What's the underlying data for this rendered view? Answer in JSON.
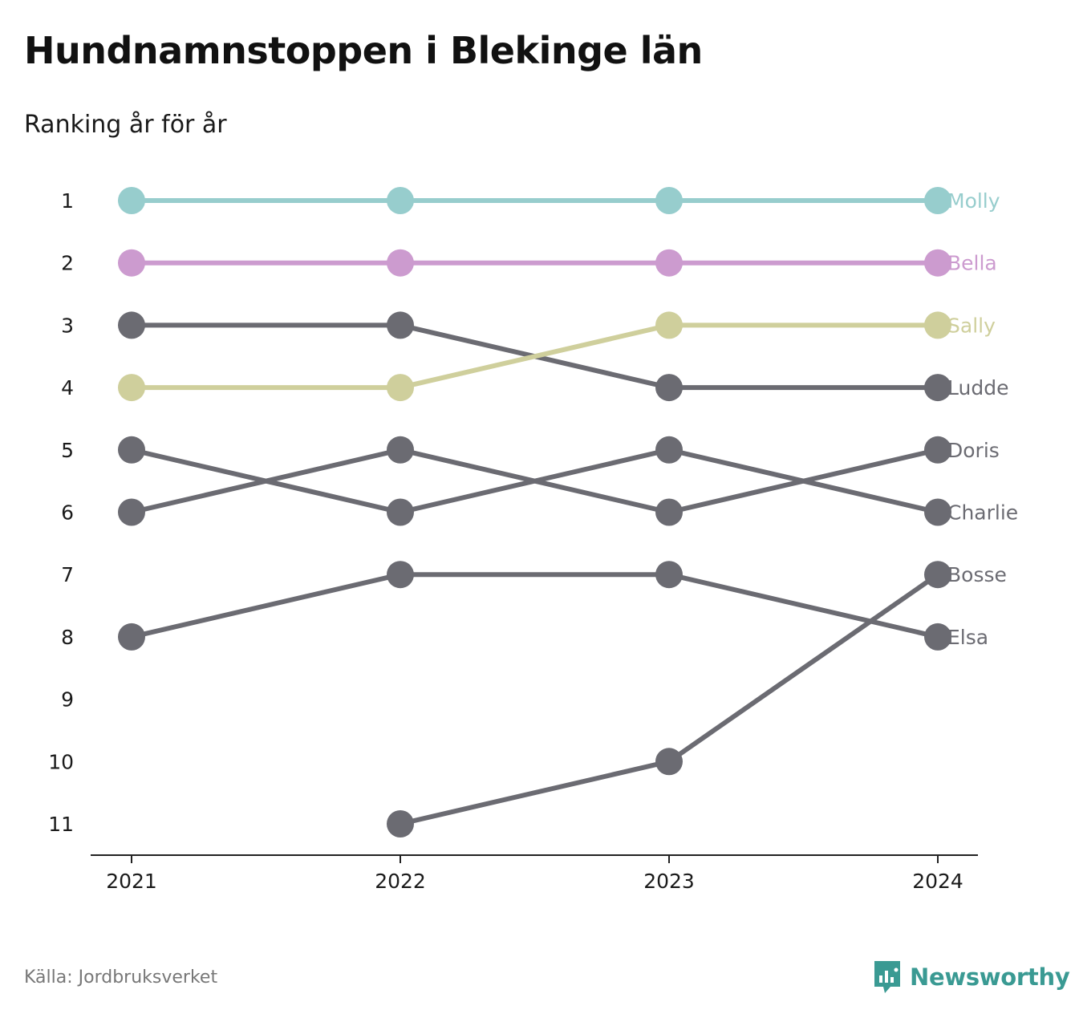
{
  "title": "Hundnamnstoppen i Blekinge län",
  "subtitle": "Ranking år för år",
  "source": "Källa: Jordbruksverket",
  "brand": "Newsworthy",
  "brand_icon": "newsworthy-logo-icon",
  "colors": {
    "accent": "#3a9a93",
    "grey": "#6b6b72"
  },
  "chart_data": {
    "type": "line",
    "x": [
      "2021",
      "2022",
      "2023",
      "2024"
    ],
    "y_ticks": [
      "1",
      "2",
      "3",
      "4",
      "5",
      "6",
      "7",
      "8",
      "9",
      "10",
      "11"
    ],
    "ylim": [
      1,
      11
    ],
    "y_inverted": true,
    "grid": false,
    "xlabel": "",
    "ylabel": "",
    "series": [
      {
        "name": "Molly",
        "values": [
          1,
          1,
          1,
          1
        ],
        "color": "#97cdcd"
      },
      {
        "name": "Bella",
        "values": [
          2,
          2,
          2,
          2
        ],
        "color": "#cc9bcf"
      },
      {
        "name": "Sally",
        "values": [
          4,
          4,
          3,
          3
        ],
        "color": "#cfcf9c"
      },
      {
        "name": "Ludde",
        "values": [
          3,
          3,
          4,
          4
        ],
        "color": "#6b6b72"
      },
      {
        "name": "Doris",
        "values": [
          6,
          5,
          6,
          5
        ],
        "color": "#6b6b72"
      },
      {
        "name": "Charlie",
        "values": [
          5,
          6,
          5,
          6
        ],
        "color": "#6b6b72"
      },
      {
        "name": "Bosse",
        "values": [
          null,
          11,
          10,
          7
        ],
        "color": "#6b6b72"
      },
      {
        "name": "Elsa",
        "values": [
          8,
          7,
          7,
          8
        ],
        "color": "#6b6b72"
      }
    ]
  }
}
